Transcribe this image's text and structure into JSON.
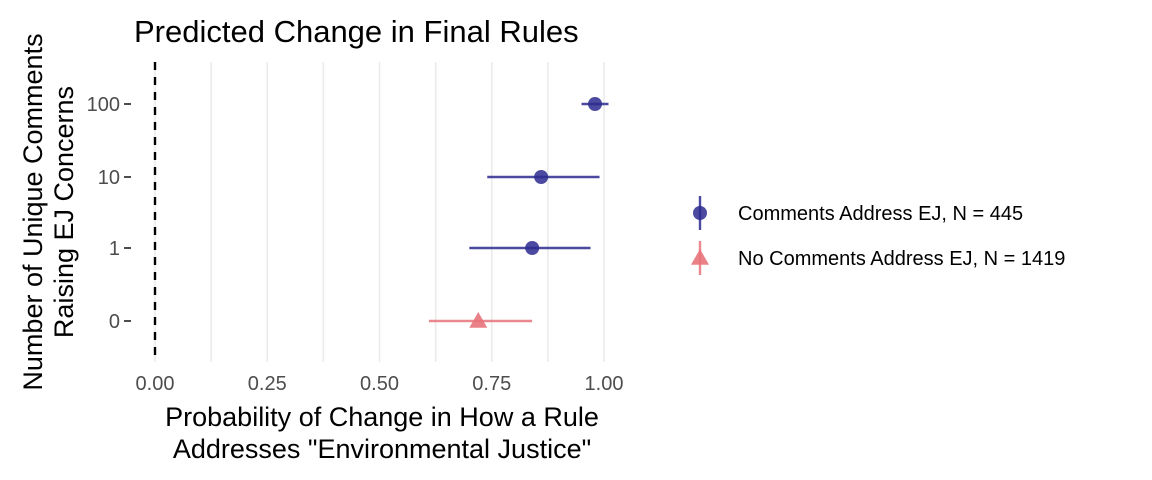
{
  "chart_data": {
    "type": "scatter",
    "title": "Predicted Change in Final Rules",
    "xlabel": [
      "Probability of Change in How a Rule",
      "Addresses \"Environmental Justice\""
    ],
    "ylabel": [
      "Number of Unique Comments",
      "Raising EJ Concerns"
    ],
    "xlim": [
      0,
      1
    ],
    "x_ticks": [
      0,
      0.25,
      0.5,
      0.75,
      1
    ],
    "x_tick_labels": [
      "0.00",
      "0.25",
      "0.50",
      "0.75",
      "1.00"
    ],
    "y_categories": [
      "0",
      "1",
      "10",
      "100"
    ],
    "reference_line_x": 0,
    "grid": "vertical",
    "legend_position": "right",
    "series": [
      {
        "name": "Comments Address EJ, N = 445",
        "color": "#2c2a8f",
        "marker": "circle",
        "points": [
          {
            "y": "1",
            "x": 0.84,
            "lo": 0.7,
            "hi": 0.97
          },
          {
            "y": "10",
            "x": 0.86,
            "lo": 0.74,
            "hi": 0.99
          },
          {
            "y": "100",
            "x": 0.98,
            "lo": 0.95,
            "hi": 1.01
          }
        ]
      },
      {
        "name": "No Comments Address EJ, N = 1419",
        "color": "#e8737b",
        "marker": "triangle",
        "points": [
          {
            "y": "0",
            "x": 0.72,
            "lo": 0.61,
            "hi": 0.84
          }
        ]
      }
    ]
  }
}
